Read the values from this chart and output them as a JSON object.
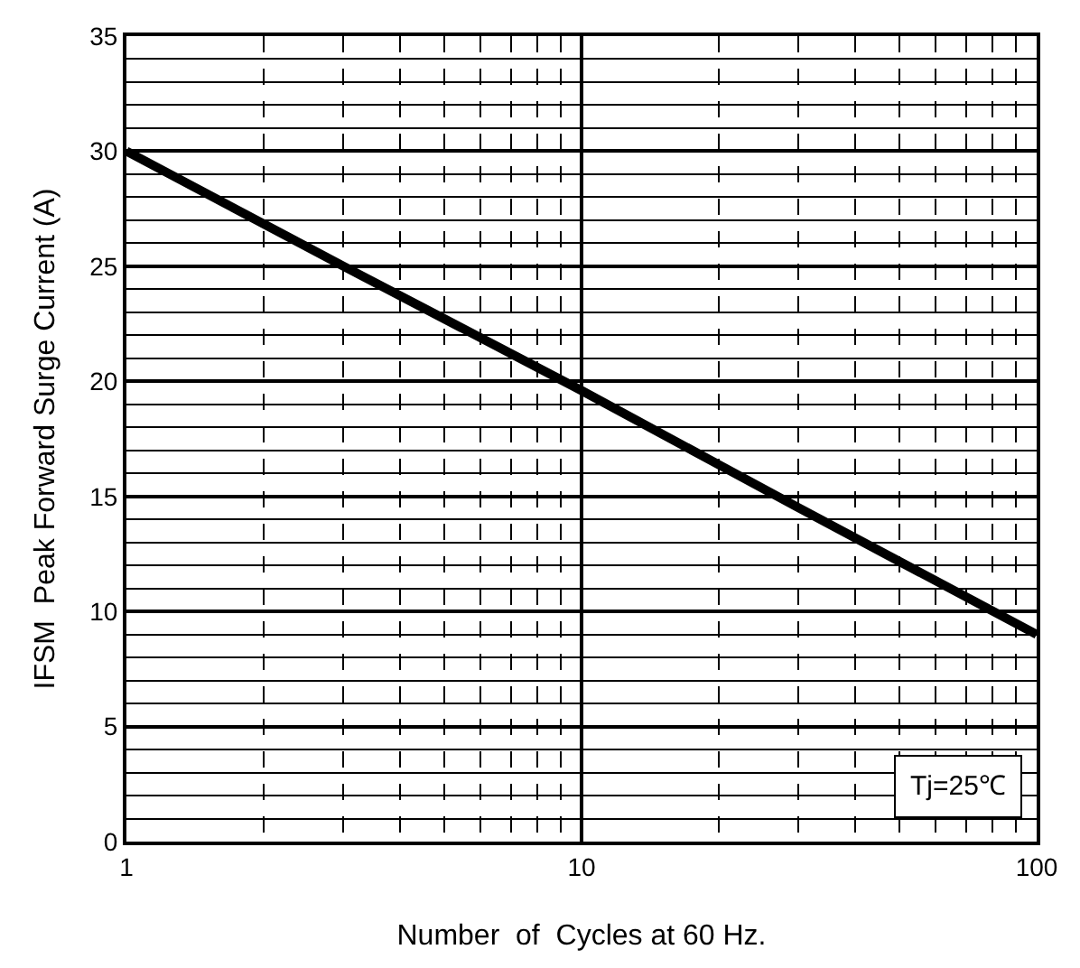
{
  "chart_data": {
    "type": "line",
    "xlabel": "Number  of  Cycles at 60 Hz.",
    "ylabel": "IFSM  Peak Forward Surge Current (A)",
    "x": [
      1,
      3,
      10,
      30,
      100
    ],
    "series": [
      {
        "color": "#000000",
        "values": [
          30,
          25,
          19.6,
          14.5,
          9
        ]
      }
    ],
    "log": "x",
    "xlim": [
      1,
      100
    ],
    "xticks": [
      1,
      10,
      100
    ],
    "ylim": [
      0,
      35
    ],
    "yticks": [
      0,
      5,
      10,
      15,
      20,
      25,
      30,
      35
    ],
    "grid": true,
    "marker": "none",
    "line_style": "solid",
    "annotations": [
      "Tj=25℃"
    ]
  }
}
